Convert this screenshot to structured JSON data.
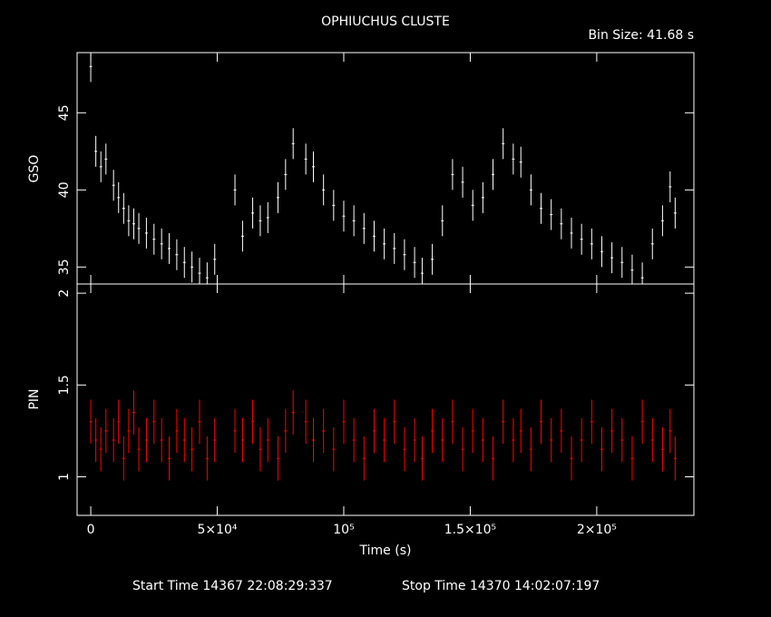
{
  "chart_data": [
    {
      "type": "errorbar",
      "title": "OPHIUCHUS CLUSTE",
      "subtitle": "Bin Size: 41.68 s",
      "ylabel": "GSO",
      "xlim": [
        -5400,
        238400
      ],
      "ylim": [
        33.9,
        48.9
      ],
      "yticks": [
        35,
        40,
        45
      ],
      "x": [
        0,
        2000,
        4000,
        6000,
        9000,
        11000,
        13000,
        15000,
        17000,
        19000,
        22000,
        25000,
        28000,
        31000,
        34000,
        37000,
        40000,
        43000,
        46000,
        49000,
        57000,
        60000,
        64000,
        67000,
        70000,
        74000,
        77000,
        80000,
        85000,
        88000,
        92000,
        96000,
        100000,
        104000,
        108000,
        112000,
        116000,
        120000,
        124000,
        128000,
        131000,
        135000,
        139000,
        143000,
        147000,
        151000,
        155000,
        159000,
        163000,
        167000,
        170000,
        174000,
        178000,
        182000,
        186000,
        190000,
        194000,
        198000,
        202000,
        206000,
        210000,
        214000,
        218000,
        222000,
        226000,
        229000,
        231000
      ],
      "series": [
        {
          "name": "GSO",
          "color": "#ffffff",
          "error": 1.0,
          "values": [
            48,
            42.5,
            41.5,
            42,
            40.3,
            39.5,
            38.8,
            38,
            37.8,
            37.5,
            37.2,
            36.8,
            36.5,
            36.2,
            35.8,
            35.3,
            35,
            34.6,
            34.3,
            35.5,
            40,
            37,
            38.5,
            38,
            38.2,
            39.5,
            41,
            43,
            42,
            41.5,
            40,
            39,
            38.3,
            38,
            37.5,
            37,
            36.5,
            36.2,
            35.8,
            35.3,
            34.6,
            35.5,
            38,
            41,
            40.5,
            39,
            39.5,
            41,
            43,
            42,
            41.8,
            40,
            38.8,
            38.4,
            37.8,
            37.2,
            36.8,
            36.5,
            36,
            35.6,
            35.3,
            34.8,
            34.3,
            36.5,
            38,
            40.2,
            38.5
          ]
        }
      ]
    },
    {
      "type": "errorbar",
      "ylabel": "PIN",
      "xlabel": "Time (s)",
      "start_time": "Start Time 14367 22:08:29:337",
      "stop_time": "Stop Time 14370 14:02:07:197",
      "xlim": [
        -5400,
        238400
      ],
      "xticks": [
        0,
        {
          "value": 50000,
          "label": "5×10⁴"
        },
        {
          "value": 100000,
          "label": "10⁵"
        },
        {
          "value": 150000,
          "label": "1.5×10⁵"
        },
        {
          "value": 200000,
          "label": "2×10⁵"
        }
      ],
      "ylim": [
        0.79,
        2.05
      ],
      "yticks": [
        1,
        1.5,
        2
      ],
      "x": [
        0,
        2000,
        4000,
        6000,
        9000,
        11000,
        13000,
        15000,
        17000,
        19000,
        22000,
        25000,
        28000,
        31000,
        34000,
        37000,
        40000,
        43000,
        46000,
        49000,
        57000,
        60000,
        64000,
        67000,
        70000,
        74000,
        77000,
        80000,
        85000,
        88000,
        92000,
        96000,
        100000,
        104000,
        108000,
        112000,
        116000,
        120000,
        124000,
        128000,
        131000,
        135000,
        139000,
        143000,
        147000,
        151000,
        155000,
        159000,
        163000,
        167000,
        170000,
        174000,
        178000,
        182000,
        186000,
        190000,
        194000,
        198000,
        202000,
        206000,
        210000,
        214000,
        218000,
        222000,
        226000,
        229000,
        231000
      ],
      "series": [
        {
          "name": "PIN",
          "color": "#ff0000",
          "error": 0.12,
          "values": [
            1.3,
            1.2,
            1.15,
            1.25,
            1.2,
            1.3,
            1.1,
            1.25,
            1.35,
            1.15,
            1.2,
            1.3,
            1.2,
            1.1,
            1.25,
            1.2,
            1.15,
            1.3,
            1.1,
            1.2,
            1.25,
            1.2,
            1.3,
            1.15,
            1.2,
            1.1,
            1.25,
            1.35,
            1.3,
            1.2,
            1.25,
            1.15,
            1.3,
            1.2,
            1.1,
            1.25,
            1.2,
            1.3,
            1.15,
            1.2,
            1.1,
            1.25,
            1.2,
            1.3,
            1.15,
            1.25,
            1.2,
            1.1,
            1.3,
            1.2,
            1.25,
            1.15,
            1.3,
            1.2,
            1.25,
            1.1,
            1.2,
            1.3,
            1.15,
            1.25,
            1.2,
            1.1,
            1.3,
            1.2,
            1.15,
            1.25,
            1.1
          ]
        }
      ]
    }
  ]
}
